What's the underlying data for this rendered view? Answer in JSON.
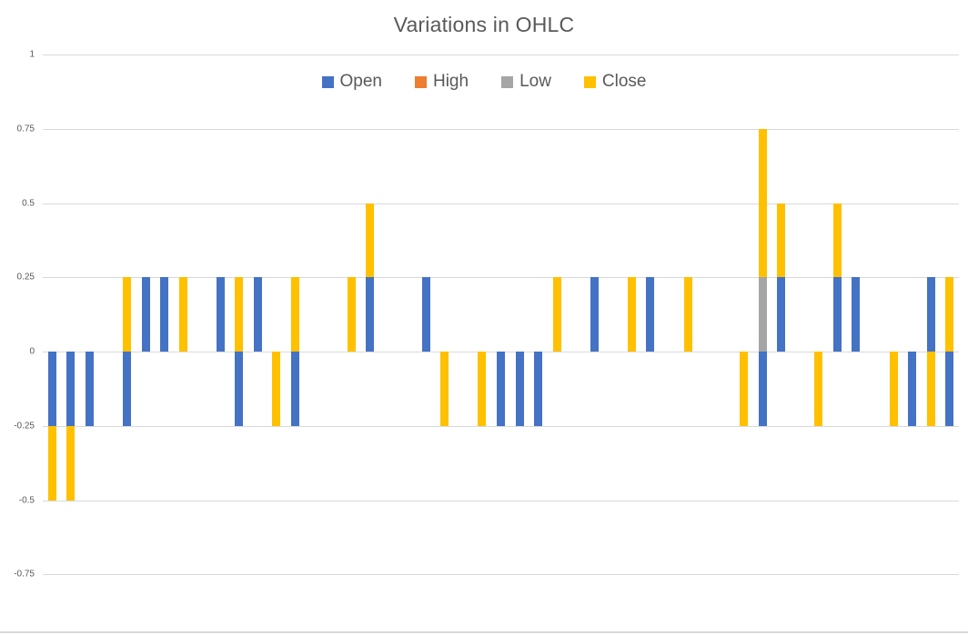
{
  "title": "Variations in OHLC",
  "legend": [
    {
      "label": "Open",
      "color": "#4472C4"
    },
    {
      "label": "High",
      "color": "#ED7D31"
    },
    {
      "label": "Low",
      "color": "#A5A5A5"
    },
    {
      "label": "Close",
      "color": "#FFC000"
    }
  ],
  "colors": {
    "open": "#4472C4",
    "high": "#ED7D31",
    "low": "#A5A5A5",
    "close": "#FFC000",
    "gridline": "#d9d9d9",
    "text": "#595959"
  },
  "chart_data": {
    "type": "bar",
    "subtype": "stacked-column",
    "title": "Variations in OHLC",
    "n_points": 49,
    "x": [
      1,
      2,
      3,
      4,
      5,
      6,
      7,
      8,
      9,
      10,
      11,
      12,
      13,
      14,
      15,
      16,
      17,
      18,
      19,
      20,
      21,
      22,
      23,
      24,
      25,
      26,
      27,
      28,
      29,
      30,
      31,
      32,
      33,
      34,
      35,
      36,
      37,
      38,
      39,
      40,
      41,
      42,
      43,
      44,
      45,
      46,
      47,
      48,
      49
    ],
    "x_tick_labels_visible": false,
    "series": [
      {
        "name": "Open",
        "color": "#4472C4",
        "values": [
          -0.25,
          -0.25,
          -0.25,
          0,
          -0.25,
          0.25,
          0.25,
          0,
          0,
          0.25,
          -0.25,
          0.25,
          0,
          -0.25,
          0,
          0,
          0,
          0.25,
          0,
          0,
          0.25,
          0,
          0,
          0,
          -0.25,
          -0.25,
          -0.25,
          0,
          0,
          0.25,
          0,
          0,
          0.25,
          0,
          0,
          0,
          0,
          0,
          -0.25,
          0.25,
          0,
          0,
          0.25,
          0.25,
          0,
          0,
          -0.25,
          0.25,
          -0.25
        ]
      },
      {
        "name": "High",
        "color": "#ED7D31",
        "values": [
          0,
          0,
          0,
          0,
          0,
          0,
          0,
          0,
          0,
          0,
          0,
          0,
          0,
          0,
          0,
          0,
          0,
          0,
          0,
          0,
          0,
          0,
          0,
          0,
          0,
          0,
          0,
          0,
          0,
          0,
          0,
          0,
          0,
          0,
          0,
          0,
          0,
          0,
          0,
          0,
          0,
          0,
          0,
          0,
          0,
          0,
          0,
          0,
          0
        ]
      },
      {
        "name": "Low",
        "color": "#A5A5A5",
        "values": [
          0,
          0,
          0,
          0,
          0,
          0,
          0,
          0,
          0,
          0,
          0,
          0,
          0,
          0,
          0,
          0,
          0,
          0,
          0,
          0,
          0,
          0,
          0,
          0,
          0,
          0,
          0,
          0,
          0,
          0,
          0,
          0,
          0,
          0,
          0,
          0,
          0,
          0,
          0.25,
          0,
          0,
          0,
          0,
          0,
          0,
          0,
          0,
          0,
          0
        ]
      },
      {
        "name": "Close",
        "color": "#FFC000",
        "values": [
          -0.25,
          -0.25,
          0,
          0,
          0.25,
          0,
          0,
          0.25,
          0,
          0,
          0.25,
          0,
          -0.25,
          0.25,
          0,
          0,
          0.25,
          0.25,
          0,
          0,
          0,
          -0.25,
          0,
          -0.25,
          0,
          0,
          0,
          0.25,
          0,
          0,
          0,
          0.25,
          0,
          0,
          0.25,
          0,
          0,
          -0.25,
          0.5,
          0.25,
          0,
          -0.25,
          0.25,
          0,
          0,
          -0.25,
          0,
          -0.25,
          0.25
        ]
      }
    ],
    "ylim": [
      -0.75,
      1
    ],
    "yticks": [
      1,
      0.75,
      0.5,
      0.25,
      0,
      -0.25,
      -0.5,
      -0.75
    ],
    "ytick_labels": [
      "1",
      "0.75",
      "0.5",
      "0.25",
      "0",
      "-0.25",
      "-0.5",
      "-0.75"
    ],
    "grid": true,
    "legend_position": "top-center",
    "background": "#ffffff"
  }
}
